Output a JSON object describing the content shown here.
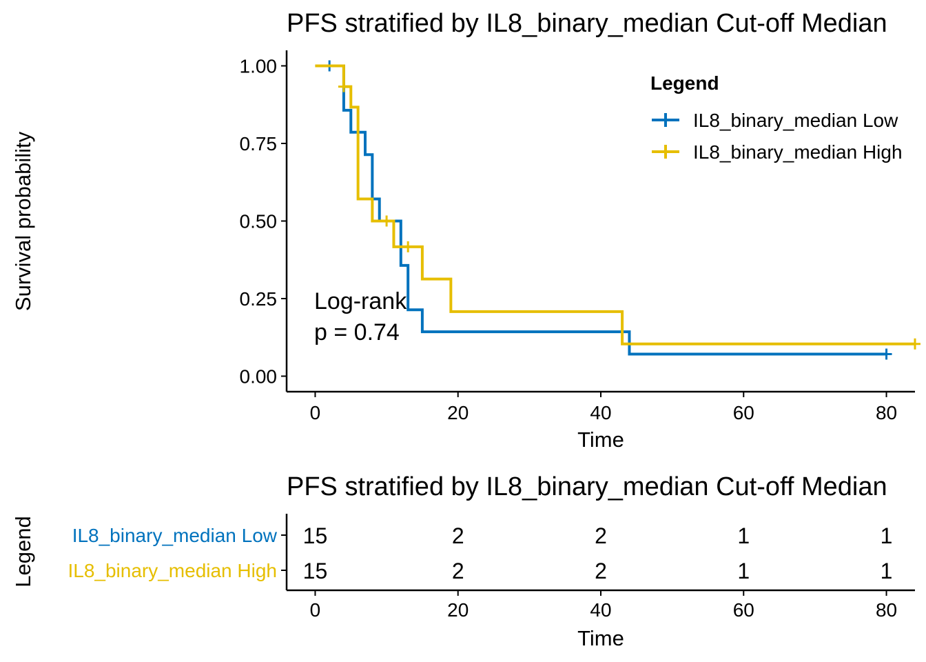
{
  "chart_data": [
    {
      "type": "line",
      "subtype": "kaplan-meier",
      "title": "PFS stratified by IL8_binary_median Cut-off Median",
      "xlabel": "Time",
      "ylabel": "Survival probability",
      "xlim": [
        -4,
        84
      ],
      "ylim": [
        -0.05,
        1.05
      ],
      "x_ticks": [
        0,
        20,
        40,
        60,
        80
      ],
      "y_ticks": [
        0.0,
        0.25,
        0.5,
        0.75,
        1.0
      ],
      "y_tick_labels": [
        "0.00",
        "0.25",
        "0.50",
        "0.75",
        "1.00"
      ],
      "grid": false,
      "legend_title": "Legend",
      "legend_position": "top-right",
      "annotation": [
        "Log-rank",
        "p = 0.74"
      ],
      "series": [
        {
          "name": "IL8_binary_median Low",
          "color": "#0072BD",
          "steps": [
            [
              0,
              1.0
            ],
            [
              4,
              0.857
            ],
            [
              5,
              0.786
            ],
            [
              7,
              0.714
            ],
            [
              8,
              0.571
            ],
            [
              9,
              0.5
            ],
            [
              12,
              0.357
            ],
            [
              13,
              0.214
            ],
            [
              15,
              0.143
            ],
            [
              44,
              0.071
            ],
            [
              80,
              0.071
            ]
          ],
          "censored": [
            [
              2,
              1.0
            ],
            [
              80,
              0.071
            ]
          ]
        },
        {
          "name": "IL8_binary_median High",
          "color": "#E6BE00",
          "steps": [
            [
              0,
              1.0
            ],
            [
              4,
              0.933
            ],
            [
              5,
              0.867
            ],
            [
              6,
              0.571
            ],
            [
              8,
              0.5
            ],
            [
              11,
              0.417
            ],
            [
              15,
              0.313
            ],
            [
              19,
              0.208
            ],
            [
              43,
              0.104
            ],
            [
              84,
              0.104
            ]
          ],
          "censored": [
            [
              4,
              0.933
            ],
            [
              10,
              0.5
            ],
            [
              13,
              0.417
            ],
            [
              84,
              0.104
            ]
          ]
        }
      ]
    },
    {
      "type": "table",
      "title": "PFS stratified by IL8_binary_median Cut-off Median",
      "xlabel": "Time",
      "ylabel": "Legend",
      "x_ticks": [
        0,
        20,
        40,
        60,
        80
      ],
      "rows": [
        {
          "name": "IL8_binary_median Low",
          "color": "#0072BD",
          "values": [
            "15",
            "2",
            "2",
            "1",
            "1"
          ]
        },
        {
          "name": "IL8_binary_median High",
          "color": "#E6BE00",
          "values": [
            "15",
            "2",
            "2",
            "1",
            "1"
          ]
        }
      ]
    }
  ]
}
